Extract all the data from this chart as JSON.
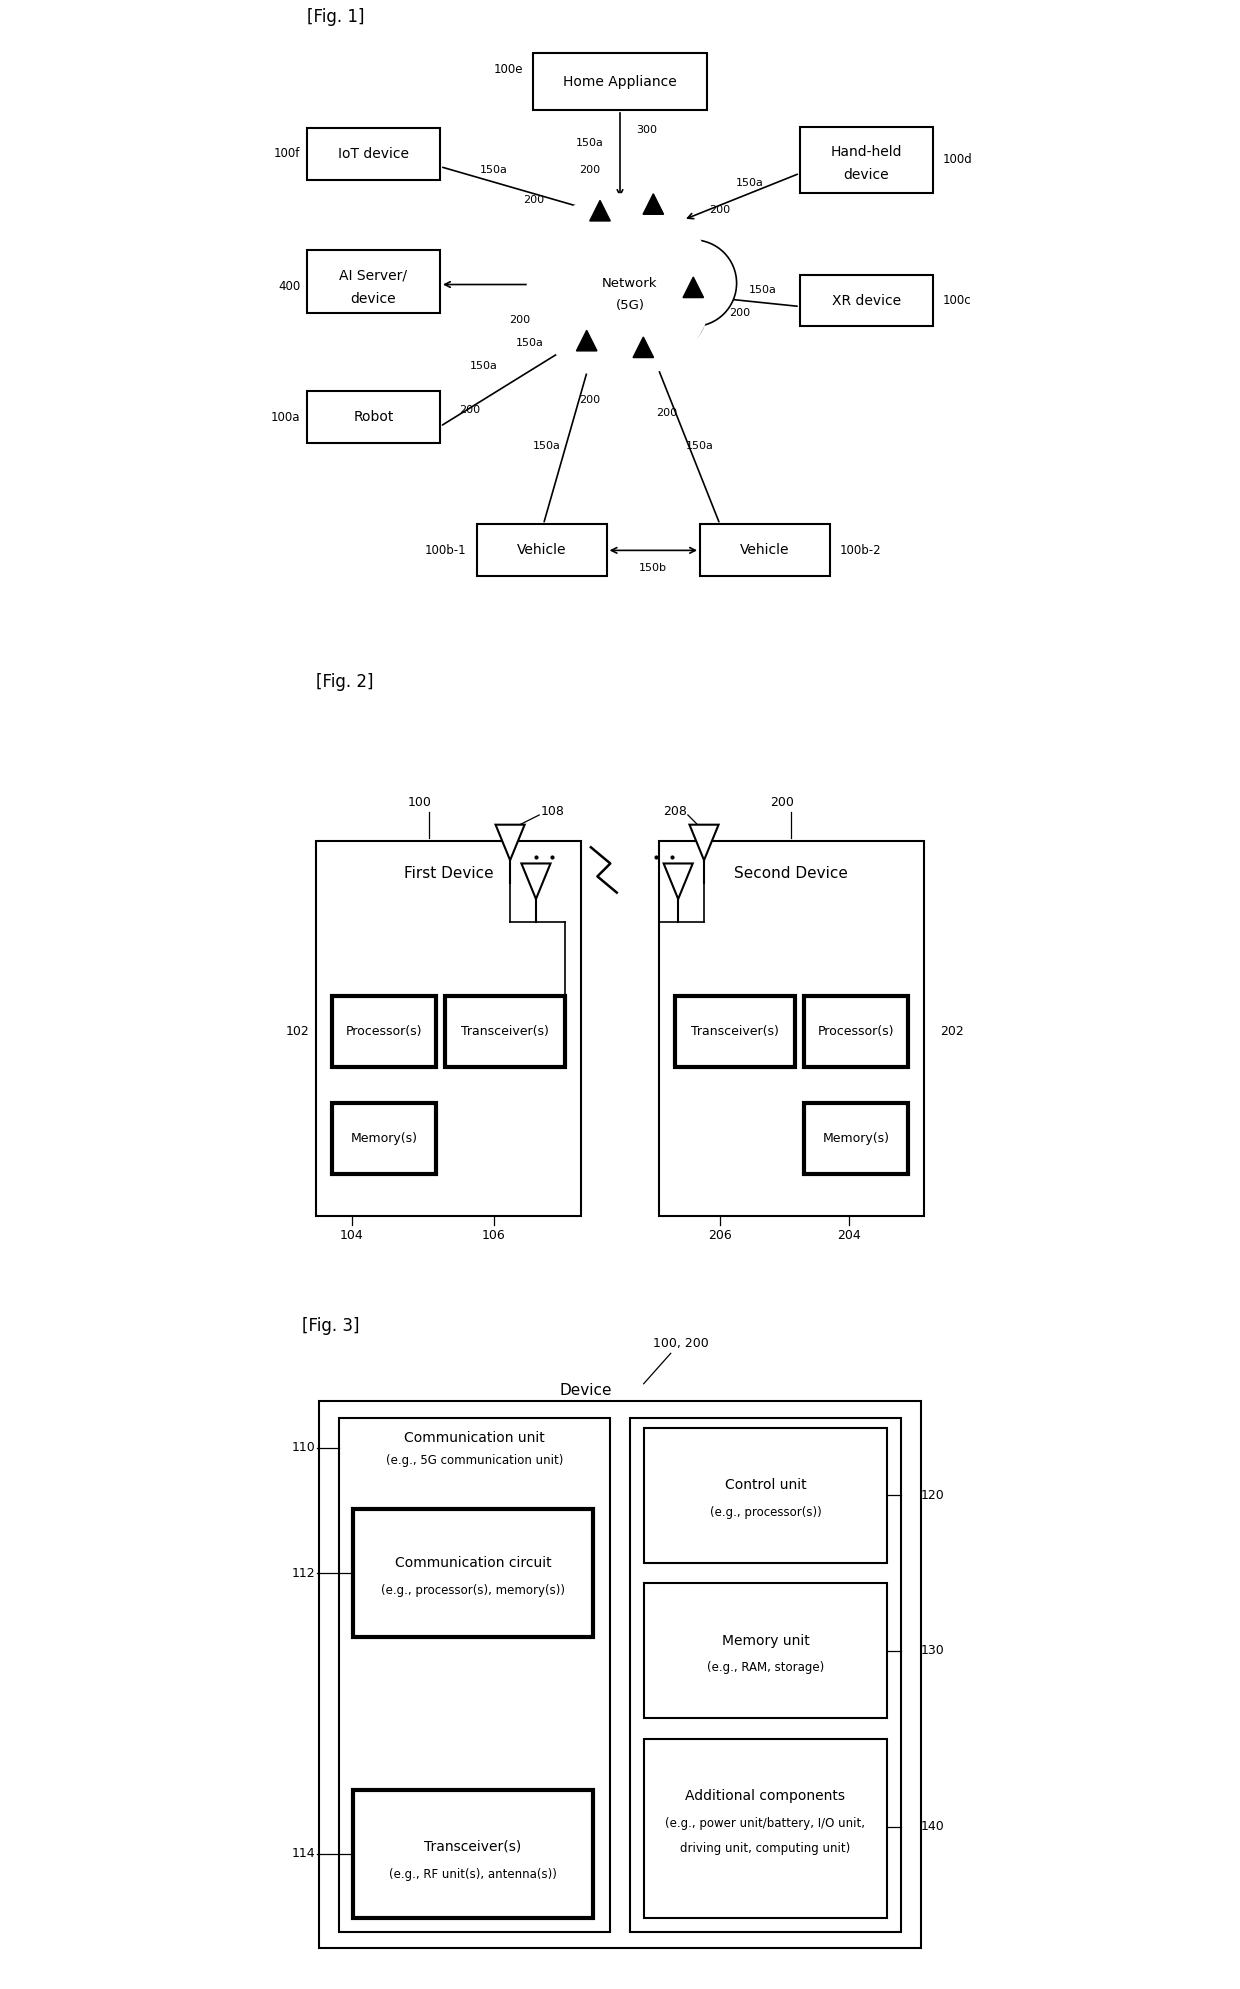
{
  "bg_color": "#ffffff",
  "fig1_label": "[Fig. 1]",
  "fig2_label": "[Fig. 2]",
  "fig3_label": "[Fig. 3]"
}
